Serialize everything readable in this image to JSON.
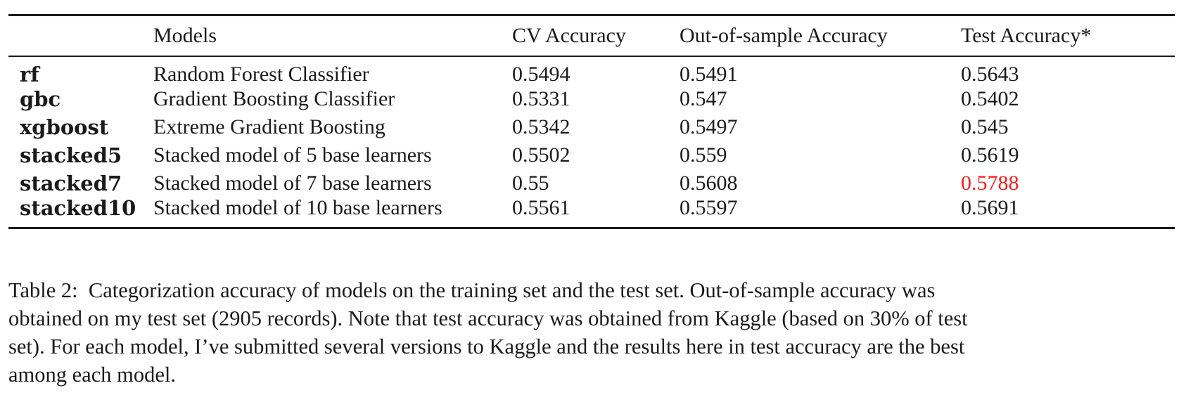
{
  "table": {
    "headers": {
      "key": "",
      "models": "Models",
      "cv_accuracy": "CV Accuracy",
      "oos_accuracy": "Out-of-sample Accuracy",
      "test_accuracy": "Test Accuracy*"
    },
    "rows": [
      {
        "key": "rf",
        "model": "Random Forest Classifier",
        "cv": "0.5494",
        "oos": "0.5491",
        "test": "0.5643",
        "highlight": false
      },
      {
        "key": "gbc",
        "model": "Gradient Boosting Classifier",
        "cv": "0.5331",
        "oos": "0.547",
        "test": "0.5402",
        "highlight": false
      },
      {
        "key": "xgboost",
        "model": "Extreme Gradient Boosting",
        "cv": "0.5342",
        "oos": "0.5497",
        "test": "0.545",
        "highlight": false
      },
      {
        "key": "stacked5",
        "model": "Stacked model of 5 base learners",
        "cv": "0.5502",
        "oos": "0.559",
        "test": "0.5619",
        "highlight": false
      },
      {
        "key": "stacked7",
        "model": "Stacked model of 7 base learners",
        "cv": "0.55",
        "oos": "0.5608",
        "test": "0.5788",
        "highlight": true
      },
      {
        "key": "stacked10",
        "model": "Stacked model of 10 base learners",
        "cv": "0.5561",
        "oos": "0.5597",
        "test": "0.5691",
        "highlight": false
      }
    ],
    "highlight_color": "#ff1a1a"
  },
  "caption": {
    "label": "Table 2:",
    "text": "Categorization accuracy of models on the training set and the test set. Out-of-sample accuracy was obtained on my test set (2905 records). Note that test accuracy was obtained from Kaggle (based on 30% of test set). For each model, I’ve submitted several versions to Kaggle and the results here in test accuracy are the best among each model."
  }
}
